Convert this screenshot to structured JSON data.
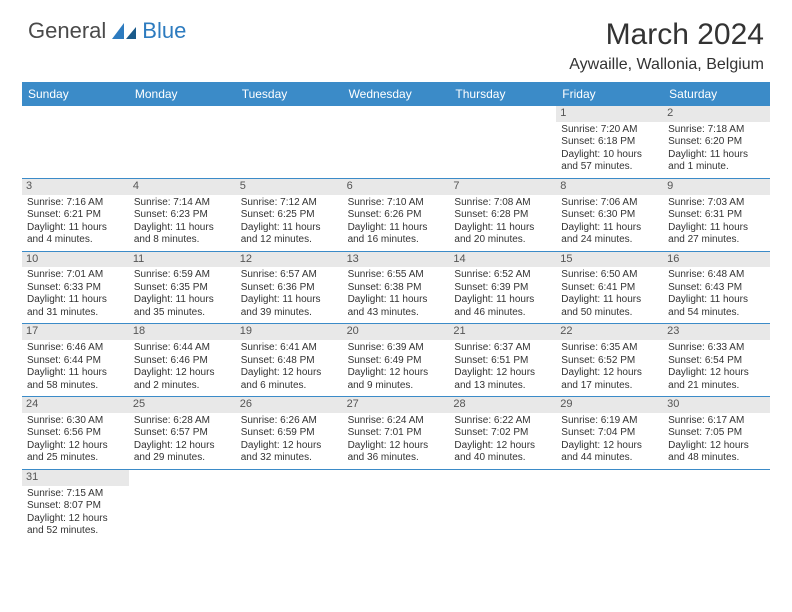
{
  "logo": {
    "text1": "General",
    "text2": "Blue"
  },
  "title": "March 2024",
  "location": "Aywaille, Wallonia, Belgium",
  "day_header_bg": "#3b8bc8",
  "days": [
    "Sunday",
    "Monday",
    "Tuesday",
    "Wednesday",
    "Thursday",
    "Friday",
    "Saturday"
  ],
  "weeks": [
    [
      null,
      null,
      null,
      null,
      null,
      {
        "n": "1",
        "sunrise": "Sunrise: 7:20 AM",
        "sunset": "Sunset: 6:18 PM",
        "daylight": "Daylight: 10 hours and 57 minutes."
      },
      {
        "n": "2",
        "sunrise": "Sunrise: 7:18 AM",
        "sunset": "Sunset: 6:20 PM",
        "daylight": "Daylight: 11 hours and 1 minute."
      }
    ],
    [
      {
        "n": "3",
        "sunrise": "Sunrise: 7:16 AM",
        "sunset": "Sunset: 6:21 PM",
        "daylight": "Daylight: 11 hours and 4 minutes."
      },
      {
        "n": "4",
        "sunrise": "Sunrise: 7:14 AM",
        "sunset": "Sunset: 6:23 PM",
        "daylight": "Daylight: 11 hours and 8 minutes."
      },
      {
        "n": "5",
        "sunrise": "Sunrise: 7:12 AM",
        "sunset": "Sunset: 6:25 PM",
        "daylight": "Daylight: 11 hours and 12 minutes."
      },
      {
        "n": "6",
        "sunrise": "Sunrise: 7:10 AM",
        "sunset": "Sunset: 6:26 PM",
        "daylight": "Daylight: 11 hours and 16 minutes."
      },
      {
        "n": "7",
        "sunrise": "Sunrise: 7:08 AM",
        "sunset": "Sunset: 6:28 PM",
        "daylight": "Daylight: 11 hours and 20 minutes."
      },
      {
        "n": "8",
        "sunrise": "Sunrise: 7:06 AM",
        "sunset": "Sunset: 6:30 PM",
        "daylight": "Daylight: 11 hours and 24 minutes."
      },
      {
        "n": "9",
        "sunrise": "Sunrise: 7:03 AM",
        "sunset": "Sunset: 6:31 PM",
        "daylight": "Daylight: 11 hours and 27 minutes."
      }
    ],
    [
      {
        "n": "10",
        "sunrise": "Sunrise: 7:01 AM",
        "sunset": "Sunset: 6:33 PM",
        "daylight": "Daylight: 11 hours and 31 minutes."
      },
      {
        "n": "11",
        "sunrise": "Sunrise: 6:59 AM",
        "sunset": "Sunset: 6:35 PM",
        "daylight": "Daylight: 11 hours and 35 minutes."
      },
      {
        "n": "12",
        "sunrise": "Sunrise: 6:57 AM",
        "sunset": "Sunset: 6:36 PM",
        "daylight": "Daylight: 11 hours and 39 minutes."
      },
      {
        "n": "13",
        "sunrise": "Sunrise: 6:55 AM",
        "sunset": "Sunset: 6:38 PM",
        "daylight": "Daylight: 11 hours and 43 minutes."
      },
      {
        "n": "14",
        "sunrise": "Sunrise: 6:52 AM",
        "sunset": "Sunset: 6:39 PM",
        "daylight": "Daylight: 11 hours and 46 minutes."
      },
      {
        "n": "15",
        "sunrise": "Sunrise: 6:50 AM",
        "sunset": "Sunset: 6:41 PM",
        "daylight": "Daylight: 11 hours and 50 minutes."
      },
      {
        "n": "16",
        "sunrise": "Sunrise: 6:48 AM",
        "sunset": "Sunset: 6:43 PM",
        "daylight": "Daylight: 11 hours and 54 minutes."
      }
    ],
    [
      {
        "n": "17",
        "sunrise": "Sunrise: 6:46 AM",
        "sunset": "Sunset: 6:44 PM",
        "daylight": "Daylight: 11 hours and 58 minutes."
      },
      {
        "n": "18",
        "sunrise": "Sunrise: 6:44 AM",
        "sunset": "Sunset: 6:46 PM",
        "daylight": "Daylight: 12 hours and 2 minutes."
      },
      {
        "n": "19",
        "sunrise": "Sunrise: 6:41 AM",
        "sunset": "Sunset: 6:48 PM",
        "daylight": "Daylight: 12 hours and 6 minutes."
      },
      {
        "n": "20",
        "sunrise": "Sunrise: 6:39 AM",
        "sunset": "Sunset: 6:49 PM",
        "daylight": "Daylight: 12 hours and 9 minutes."
      },
      {
        "n": "21",
        "sunrise": "Sunrise: 6:37 AM",
        "sunset": "Sunset: 6:51 PM",
        "daylight": "Daylight: 12 hours and 13 minutes."
      },
      {
        "n": "22",
        "sunrise": "Sunrise: 6:35 AM",
        "sunset": "Sunset: 6:52 PM",
        "daylight": "Daylight: 12 hours and 17 minutes."
      },
      {
        "n": "23",
        "sunrise": "Sunrise: 6:33 AM",
        "sunset": "Sunset: 6:54 PM",
        "daylight": "Daylight: 12 hours and 21 minutes."
      }
    ],
    [
      {
        "n": "24",
        "sunrise": "Sunrise: 6:30 AM",
        "sunset": "Sunset: 6:56 PM",
        "daylight": "Daylight: 12 hours and 25 minutes."
      },
      {
        "n": "25",
        "sunrise": "Sunrise: 6:28 AM",
        "sunset": "Sunset: 6:57 PM",
        "daylight": "Daylight: 12 hours and 29 minutes."
      },
      {
        "n": "26",
        "sunrise": "Sunrise: 6:26 AM",
        "sunset": "Sunset: 6:59 PM",
        "daylight": "Daylight: 12 hours and 32 minutes."
      },
      {
        "n": "27",
        "sunrise": "Sunrise: 6:24 AM",
        "sunset": "Sunset: 7:01 PM",
        "daylight": "Daylight: 12 hours and 36 minutes."
      },
      {
        "n": "28",
        "sunrise": "Sunrise: 6:22 AM",
        "sunset": "Sunset: 7:02 PM",
        "daylight": "Daylight: 12 hours and 40 minutes."
      },
      {
        "n": "29",
        "sunrise": "Sunrise: 6:19 AM",
        "sunset": "Sunset: 7:04 PM",
        "daylight": "Daylight: 12 hours and 44 minutes."
      },
      {
        "n": "30",
        "sunrise": "Sunrise: 6:17 AM",
        "sunset": "Sunset: 7:05 PM",
        "daylight": "Daylight: 12 hours and 48 minutes."
      }
    ],
    [
      {
        "n": "31",
        "sunrise": "Sunrise: 7:15 AM",
        "sunset": "Sunset: 8:07 PM",
        "daylight": "Daylight: 12 hours and 52 minutes."
      },
      null,
      null,
      null,
      null,
      null,
      null
    ]
  ]
}
